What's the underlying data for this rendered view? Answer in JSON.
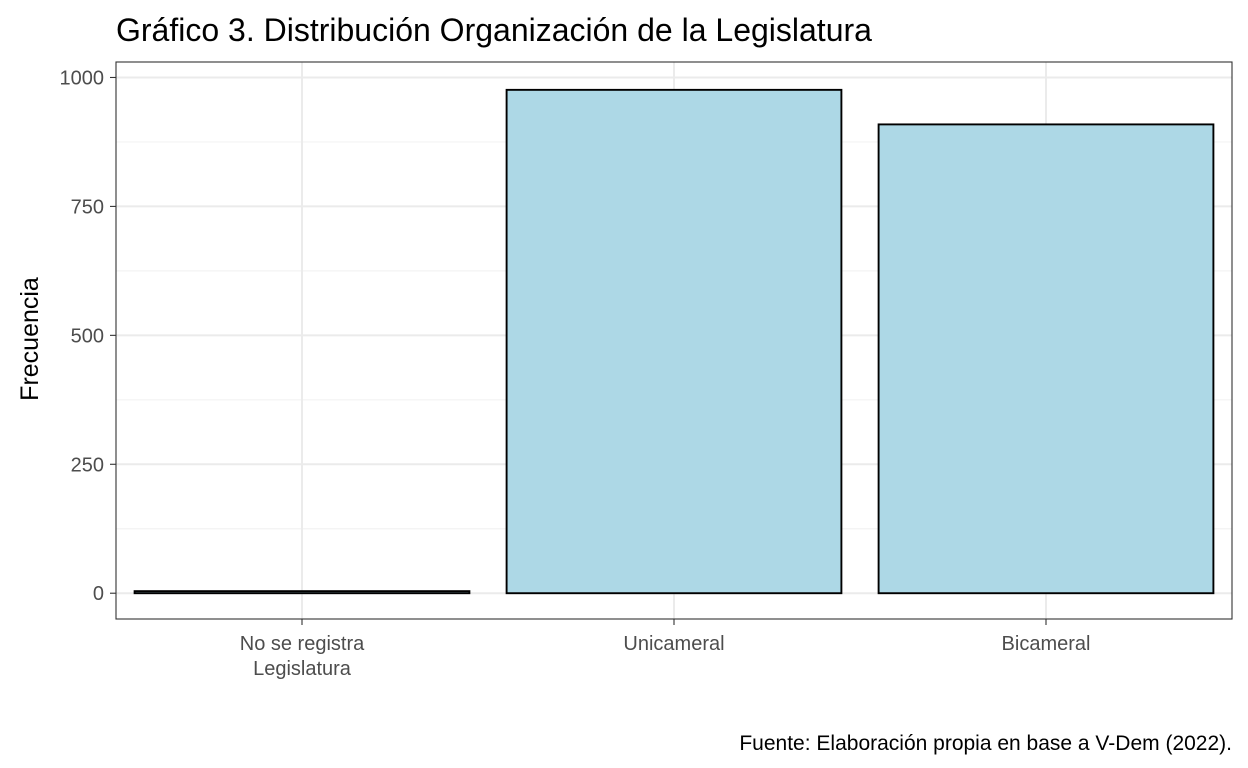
{
  "chart_data": {
    "type": "bar",
    "title": "Gráfico 3. Distribución Organización de la Legislatura",
    "xlabel": "",
    "ylabel": "Frecuencia",
    "categories": [
      [
        "No se registra",
        "Legislatura"
      ],
      [
        "Unicameral"
      ],
      [
        "Bicameral"
      ]
    ],
    "values": [
      4,
      976,
      909
    ],
    "ylim": [
      -50,
      1030
    ],
    "yticks": [
      0,
      250,
      500,
      750,
      1000
    ],
    "ytick_labels": [
      "0",
      "250",
      "500",
      "750",
      "1000"
    ],
    "grid": true,
    "legend": "none",
    "caption": "Fuente: Elaboración propia en base a V-Dem (2022).",
    "colors": {
      "bar_fill": "#ADD8E6",
      "bar_stroke": "#000000",
      "grid_major": "#ebebeb",
      "grid_minor": "#f3f3f3",
      "panel_border": "#333333",
      "tick_text": "#4d4d4d"
    }
  }
}
